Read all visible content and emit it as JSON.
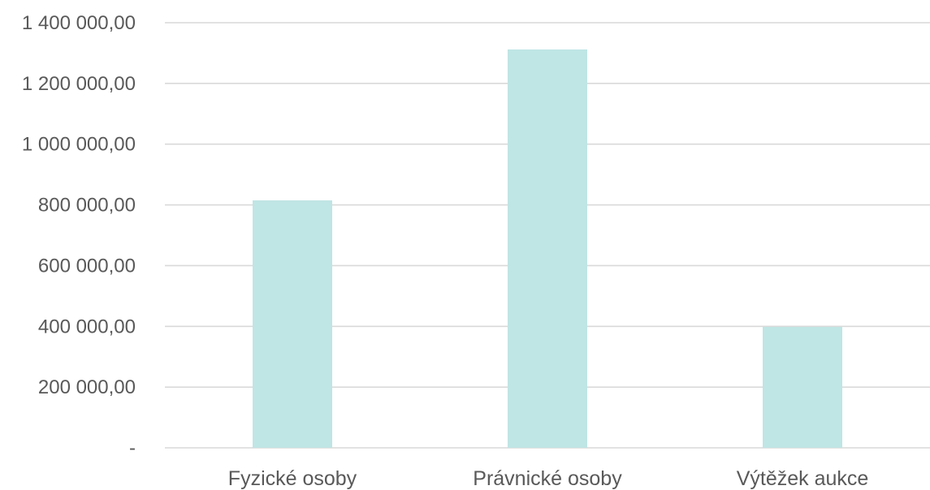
{
  "chart_data": {
    "type": "bar",
    "categories": [
      "Fyzické osoby",
      "Právnické osoby",
      "Výtěžek aukce"
    ],
    "values": [
      815000,
      1312000,
      398000
    ],
    "ylim": [
      0,
      1400000
    ],
    "y_ticks": [
      0,
      200000,
      400000,
      600000,
      800000,
      1000000,
      1200000,
      1400000
    ],
    "y_tick_labels": [
      "-",
      "200 000,00",
      "400 000,00",
      "600 000,00",
      "800 000,00",
      "1 000 000,00",
      "1 200 000,00",
      "1 400 000,00"
    ],
    "title": "",
    "xlabel": "",
    "ylabel": "",
    "grid": true,
    "legend": "none",
    "colors": {
      "bar": "#bfe5e4",
      "gridline": "#d9d9d9",
      "text": "#595959"
    }
  }
}
